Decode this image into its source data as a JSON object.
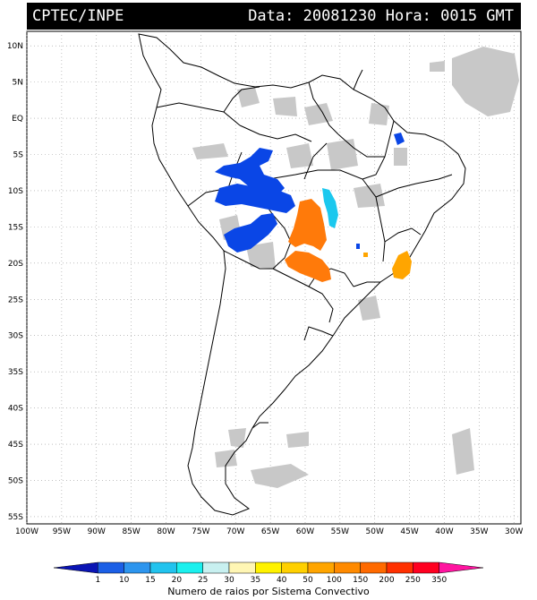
{
  "header": {
    "source": "CPTEC/INPE",
    "datetime": "Data: 20081230 Hora: 0015 GMT"
  },
  "axes": {
    "latitude_labels": [
      "10N",
      "5N",
      "EQ",
      "5S",
      "10S",
      "15S",
      "20S",
      "25S",
      "30S",
      "35S",
      "40S",
      "45S",
      "50S",
      "55S"
    ],
    "longitude_labels": [
      "100W",
      "95W",
      "90W",
      "85W",
      "80W",
      "75W",
      "70W",
      "65W",
      "60W",
      "55W",
      "50W",
      "45W",
      "40W",
      "35W",
      "30W"
    ],
    "lat_range": [
      -56,
      12
    ],
    "lon_range": [
      -100,
      -29
    ],
    "grid": "dotted"
  },
  "legend": {
    "values": [
      "1",
      "10",
      "15",
      "20",
      "25",
      "30",
      "35",
      "40",
      "50",
      "100",
      "150",
      "200",
      "250",
      "350"
    ],
    "colors": [
      "#0a14b4",
      "#1b5fe6",
      "#2d95ee",
      "#22c3ee",
      "#1bf0ee",
      "#c8f0f0",
      "#fff6b4",
      "#fff200",
      "#ffd000",
      "#ffa500",
      "#ff8a00",
      "#ff6a00",
      "#ff3000",
      "#ff0020",
      "#ff14a0"
    ],
    "caption": "Numero de raios por Sistema Convectivo"
  },
  "colors": {
    "cloud": "#c8c8c8",
    "blue_cells": "#0a46e6",
    "cyan_cells": "#1bc8ee",
    "orange_cells": "#ff7a0a",
    "amber_cells": "#ffa500"
  }
}
